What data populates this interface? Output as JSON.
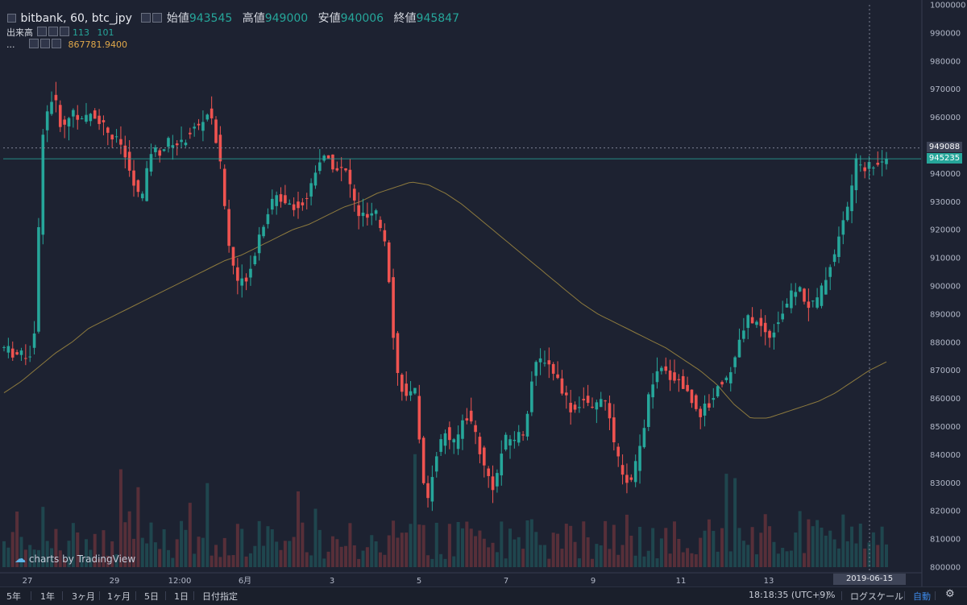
{
  "legend": {
    "title": "bitbank, 60, btc_jpy",
    "open_label": "始値",
    "open_value": "943545",
    "high_label": "高値",
    "high_value": "949000",
    "low_label": "安値",
    "low_value": "940006",
    "close_label": "終値",
    "close_value": "945847",
    "volume_label": "出来高",
    "volume_value_1": "113",
    "volume_value_2": "101",
    "ma_label": "...",
    "ma_value": "867781.9400"
  },
  "watermark": "charts by TradingView",
  "crosshair": {
    "date_label": "2019-06-15 08:00:00",
    "price_label": "949088"
  },
  "last_price_label": "945235",
  "bottom_bar": {
    "ranges": [
      "5年",
      "1年",
      "3ヶ月",
      "1ヶ月",
      "5日",
      "1日",
      "日付指定"
    ],
    "time": "18:18:35 (UTC+9)",
    "percent": "%",
    "log": "ログスケール",
    "auto": "自動",
    "gear_icon": "gear-icon"
  },
  "colors": {
    "up": "#26a69a",
    "down": "#ef5350",
    "ma": "#8d7a3e",
    "background": "#1d2231",
    "last_price": "#26a69a"
  },
  "chart_data": {
    "type": "candlestick",
    "title": "bitbank, 60, btc_jpy",
    "y_axis": {
      "min": 800000,
      "max": 1000000,
      "ticks": [
        1000000,
        990000,
        980000,
        970000,
        960000,
        950000,
        940000,
        930000,
        920000,
        910000,
        900000,
        890000,
        880000,
        870000,
        860000,
        850000,
        840000,
        830000,
        820000,
        810000,
        800000
      ],
      "tick_labels": [
        "1000000",
        "990000",
        "980000",
        "970000",
        "960000",
        "950000",
        "940000",
        "930000",
        "920000",
        "910000",
        "900000",
        "890000",
        "880000",
        "870000",
        "860000",
        "850000",
        "840000",
        "830000",
        "820000",
        "810000",
        "800000"
      ]
    },
    "x_axis": {
      "tick_labels": [
        "27",
        "29",
        "12:00",
        "6月",
        "3",
        "5",
        "7",
        "9",
        "11",
        "13"
      ]
    },
    "grid": false,
    "price_path": [
      878000,
      876000,
      875000,
      877000,
      958000,
      968000,
      955000,
      963000,
      958000,
      962000,
      958000,
      953000,
      950000,
      938000,
      930000,
      948000,
      948000,
      952000,
      950000,
      955000,
      957000,
      963000,
      945000,
      912000,
      900000,
      905000,
      918000,
      928000,
      932000,
      930000,
      928000,
      932000,
      945000,
      945000,
      942000,
      940000,
      926000,
      924000,
      925000,
      915000,
      870000,
      860000,
      862000,
      820000,
      840000,
      848000,
      843000,
      855000,
      849000,
      835000,
      828000,
      845000,
      846000,
      848000,
      870000,
      875000,
      870000,
      863000,
      855000,
      860000,
      855000,
      862000,
      848000,
      832000,
      830000,
      845000,
      865000,
      870000,
      868000,
      866000,
      860000,
      855000,
      858000,
      866000,
      868000,
      880000,
      889000,
      886000,
      882000,
      888000,
      895000,
      900000,
      893000,
      895000,
      905000,
      915000,
      928000,
      945000,
      942000,
      944000,
      945235
    ],
    "ma_path": [
      862000,
      866000,
      871000,
      876000,
      880000,
      885000,
      888000,
      891000,
      894000,
      897000,
      900000,
      903000,
      906000,
      909000,
      911000,
      914000,
      917000,
      920000,
      922000,
      925000,
      928000,
      930000,
      933000,
      935000,
      937000,
      936000,
      933000,
      929000,
      924000,
      919000,
      914000,
      909000,
      904000,
      899000,
      894000,
      890000,
      887000,
      884000,
      881000,
      878000,
      874000,
      870000,
      865000,
      858000,
      853000,
      853000,
      855000,
      857000,
      859000,
      862000,
      866000,
      870000,
      873000
    ],
    "volume_series_name": "出来高"
  }
}
